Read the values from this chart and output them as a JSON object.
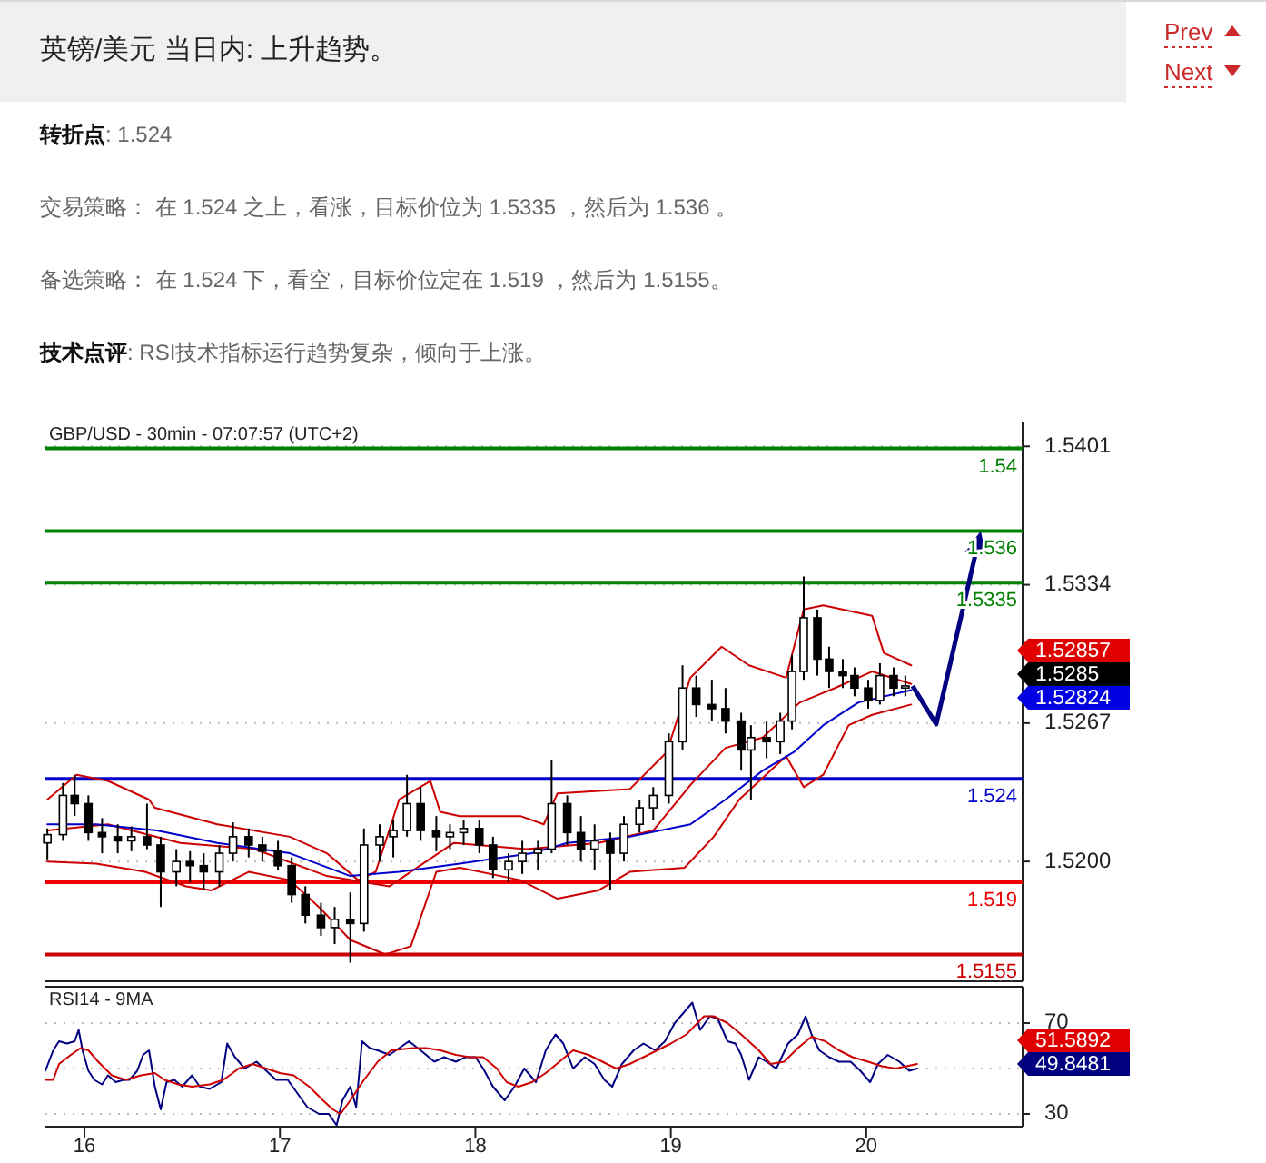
{
  "chart_data": [
    {
      "type": "candlestick",
      "title": "英镑/美元 当日内: 上升趋势。",
      "subtitle": "GBP/USD - 30min - 07:07:57 (UTC+2)",
      "annotations": [
        "Prev",
        "Next",
        "转折点: 1.524",
        "交易策略： 在 1.524 之上，看涨，目标价位为 1.5335 ，然后为 1.536 。",
        "备选策略： 在 1.524 下，看空，目标价位定在 1.519 ，然后为 1.5155。",
        "技术点评: RSI技术指标运行趋势复杂，倾向于上涨。",
        "1.52857",
        "1.5285",
        "1.52824"
      ],
      "x": [
        15.81,
        15.89,
        15.95,
        16.02,
        16.09,
        16.17,
        16.24,
        16.32,
        16.39,
        16.47,
        16.54,
        16.61,
        16.69,
        16.76,
        16.84,
        16.91,
        16.99,
        17.06,
        17.13,
        17.21,
        17.28,
        17.36,
        17.43,
        17.51,
        17.58,
        17.65,
        17.72,
        17.8,
        17.87,
        17.94,
        18.02,
        18.09,
        18.17,
        18.24,
        18.32,
        18.39,
        18.47,
        18.54,
        18.61,
        18.69,
        18.76,
        18.84,
        18.91,
        18.99,
        19.06,
        19.13,
        19.21,
        19.28,
        19.36,
        19.41,
        19.49,
        19.56,
        19.62,
        19.68,
        19.75,
        19.81,
        19.88,
        19.94,
        20.01,
        20.07,
        20.14,
        20.2
      ],
      "ohlc": [
        [
          1.5209,
          1.5216,
          1.5201,
          1.5213
        ],
        [
          1.5213,
          1.5238,
          1.521,
          1.5232
        ],
        [
          1.5232,
          1.5242,
          1.5222,
          1.5228
        ],
        [
          1.5228,
          1.5232,
          1.521,
          1.5214
        ],
        [
          1.5214,
          1.5221,
          1.5204,
          1.5212
        ],
        [
          1.5212,
          1.5218,
          1.5204,
          1.521
        ],
        [
          1.521,
          1.5217,
          1.5205,
          1.5212
        ],
        [
          1.5212,
          1.5228,
          1.5206,
          1.5208
        ],
        [
          1.5208,
          1.5212,
          1.5178,
          1.5195
        ],
        [
          1.5195,
          1.5206,
          1.5188,
          1.52
        ],
        [
          1.52,
          1.5205,
          1.519,
          1.5198
        ],
        [
          1.5198,
          1.5204,
          1.5186,
          1.5195
        ],
        [
          1.5195,
          1.5208,
          1.5188,
          1.5204
        ],
        [
          1.5204,
          1.5219,
          1.52,
          1.5212
        ],
        [
          1.5212,
          1.5216,
          1.5202,
          1.5208
        ],
        [
          1.5208,
          1.5212,
          1.52,
          1.5205
        ],
        [
          1.5205,
          1.521,
          1.5196,
          1.5198
        ],
        [
          1.5198,
          1.5202,
          1.518,
          1.5184
        ],
        [
          1.5184,
          1.5188,
          1.517,
          1.5174
        ],
        [
          1.5174,
          1.518,
          1.5164,
          1.5168
        ],
        [
          1.5168,
          1.5178,
          1.516,
          1.5172
        ],
        [
          1.5172,
          1.5185,
          1.5151,
          1.517
        ],
        [
          1.517,
          1.5216,
          1.5166,
          1.5208
        ],
        [
          1.5208,
          1.5218,
          1.52,
          1.5212
        ],
        [
          1.5212,
          1.522,
          1.5202,
          1.5215
        ],
        [
          1.5215,
          1.5242,
          1.5212,
          1.5228
        ],
        [
          1.5228,
          1.5236,
          1.521,
          1.5215
        ],
        [
          1.5215,
          1.5222,
          1.5205,
          1.5212
        ],
        [
          1.5212,
          1.5218,
          1.5206,
          1.5214
        ],
        [
          1.5214,
          1.522,
          1.5208,
          1.5216
        ],
        [
          1.5216,
          1.522,
          1.5204,
          1.5208
        ],
        [
          1.5208,
          1.5212,
          1.5192,
          1.5196
        ],
        [
          1.5196,
          1.5204,
          1.519,
          1.52
        ],
        [
          1.52,
          1.521,
          1.5194,
          1.5204
        ],
        [
          1.5204,
          1.521,
          1.5196,
          1.5206
        ],
        [
          1.5206,
          1.5249,
          1.5204,
          1.5228
        ],
        [
          1.5228,
          1.5232,
          1.5208,
          1.5214
        ],
        [
          1.5214,
          1.5222,
          1.52,
          1.5206
        ],
        [
          1.5206,
          1.5218,
          1.5196,
          1.521
        ],
        [
          1.521,
          1.5214,
          1.5186,
          1.5204
        ],
        [
          1.5204,
          1.5222,
          1.52,
          1.5218
        ],
        [
          1.5218,
          1.523,
          1.5214,
          1.5226
        ],
        [
          1.5226,
          1.5236,
          1.522,
          1.5232
        ],
        [
          1.5232,
          1.5262,
          1.5228,
          1.5258
        ],
        [
          1.5258,
          1.5295,
          1.5254,
          1.5284
        ],
        [
          1.5284,
          1.529,
          1.527,
          1.5276
        ],
        [
          1.5276,
          1.5288,
          1.5268,
          1.5274
        ],
        [
          1.5274,
          1.5284,
          1.5262,
          1.5268
        ],
        [
          1.5268,
          1.5272,
          1.5244,
          1.5254
        ],
        [
          1.5254,
          1.5266,
          1.523,
          1.526
        ],
        [
          1.526,
          1.5268,
          1.525,
          1.5258
        ],
        [
          1.5258,
          1.5272,
          1.5252,
          1.5268
        ],
        [
          1.5268,
          1.53,
          1.5264,
          1.5292
        ],
        [
          1.5292,
          1.5338,
          1.5288,
          1.5318
        ],
        [
          1.5318,
          1.5322,
          1.529,
          1.5298
        ],
        [
          1.5298,
          1.5304,
          1.5284,
          1.5292
        ],
        [
          1.5292,
          1.5298,
          1.5284,
          1.529
        ],
        [
          1.529,
          1.5294,
          1.528,
          1.5284
        ],
        [
          1.5284,
          1.5288,
          1.5274,
          1.5278
        ],
        [
          1.5278,
          1.5296,
          1.5276,
          1.529
        ],
        [
          1.529,
          1.5294,
          1.528,
          1.5284
        ],
        [
          1.5284,
          1.529,
          1.528,
          1.5285
        ]
      ],
      "series": [
        {
          "type": "line",
          "color": "#cc0000",
          "x": [
            15.81,
            15.96,
            16.12,
            16.33,
            16.36,
            16.68,
            17.05,
            17.24,
            17.4,
            17.49,
            17.61,
            17.77,
            17.82,
            17.92,
            18.23,
            18.35,
            18.42,
            18.79,
            18.98,
            19.1,
            19.26,
            19.4,
            19.59,
            19.68,
            19.78,
            20.03,
            20.09,
            20.23
          ],
          "values": [
            1.523,
            1.5242,
            1.5239,
            1.523,
            1.5226,
            1.5218,
            1.5212,
            1.5204,
            1.5191,
            1.5195,
            1.523,
            1.5239,
            1.5224,
            1.5222,
            1.5222,
            1.5218,
            1.5233,
            1.5235,
            1.5253,
            1.5289,
            1.5304,
            1.5295,
            1.5289,
            1.5322,
            1.5324,
            1.5319,
            1.5301,
            1.5295
          ]
        },
        {
          "type": "line",
          "color": "#cc0000",
          "x": [
            15.81,
            16.06,
            16.31,
            16.52,
            16.65,
            16.84,
            17.05,
            17.21,
            17.36,
            17.54,
            17.67,
            17.8,
            17.92,
            18.23,
            18.42,
            18.63,
            18.79,
            19.07,
            19.22,
            19.35,
            19.59,
            19.68,
            19.78,
            19.91,
            20.03,
            20.23
          ],
          "values": [
            1.52,
            1.5199,
            1.5195,
            1.5188,
            1.5186,
            1.5195,
            1.5191,
            1.5177,
            1.5162,
            1.5155,
            1.5159,
            1.5195,
            1.5197,
            1.5191,
            1.5182,
            1.5186,
            1.5195,
            1.5197,
            1.5212,
            1.523,
            1.5251,
            1.5236,
            1.5242,
            1.5266,
            1.5271,
            1.5276
          ]
        },
        {
          "type": "line",
          "color": "#cc0000",
          "x": [
            15.81,
            16.12,
            16.49,
            16.87,
            17.24,
            17.56,
            17.89,
            18.26,
            18.63,
            18.91,
            19.1,
            19.28,
            19.47,
            19.66,
            19.84,
            20.03,
            20.23
          ],
          "values": [
            1.5215,
            1.5218,
            1.5209,
            1.5206,
            1.5193,
            1.5188,
            1.5209,
            1.5206,
            1.5209,
            1.5215,
            1.5237,
            1.5255,
            1.526,
            1.5277,
            1.5284,
            1.5292,
            1.5286
          ]
        },
        {
          "type": "line",
          "color": "#0000cc",
          "x": [
            15.81,
            16.06,
            16.37,
            16.68,
            17.05,
            17.36,
            17.61,
            17.92,
            18.29,
            18.47,
            18.79,
            19.1,
            19.28,
            19.47,
            19.63,
            19.78,
            19.96,
            20.23
          ],
          "values": [
            1.5218,
            1.5218,
            1.5215,
            1.5209,
            1.5204,
            1.5193,
            1.5195,
            1.5199,
            1.5204,
            1.5209,
            1.5212,
            1.5218,
            1.523,
            1.5244,
            1.5253,
            1.5266,
            1.5277,
            1.5283
          ]
        }
      ],
      "ref_lines": [
        {
          "axis": "y",
          "value": 1.54,
          "label": "1.54",
          "color": "#008000"
        },
        {
          "axis": "y",
          "value": 1.536,
          "label": "1.536",
          "color": "#008000"
        },
        {
          "axis": "y",
          "value": 1.5335,
          "label": "1.5335",
          "color": "#008000"
        },
        {
          "axis": "y",
          "value": 1.524,
          "label": "1.524",
          "color": "#0000cc"
        },
        {
          "axis": "y",
          "value": 1.519,
          "label": "1.519",
          "color": "#ee0000"
        },
        {
          "axis": "y",
          "value": 1.5155,
          "label": "1.5155",
          "color": "#cc0000"
        }
      ],
      "xlim": [
        15.8,
        20.8
      ],
      "ylim": [
        1.5142,
        1.5413
      ],
      "yticks": [
        1.5401,
        1.5334,
        1.5267,
        {
          "value": 1.52,
          "label": "1.5200"
        }
      ],
      "grid": "y",
      "tick_labels": "y"
    },
    {
      "type": "line",
      "title": "RSI14 - 9MA",
      "annotations": [
        "51.5892",
        "49.8481"
      ],
      "series": [
        {
          "color": "#000080",
          "x": [
            15.8,
            15.84,
            15.87,
            15.91,
            15.95,
            15.97,
            15.99,
            16.02,
            16.05,
            16.09,
            16.12,
            16.16,
            16.2,
            16.23,
            16.27,
            16.3,
            16.33,
            16.36,
            16.39,
            16.42,
            16.46,
            16.5,
            16.55,
            16.59,
            16.64,
            16.7,
            16.73,
            16.77,
            16.82,
            16.88,
            16.93,
            16.98,
            17.04,
            17.09,
            17.14,
            17.2,
            17.25,
            17.29,
            17.32,
            17.36,
            17.39,
            17.42,
            17.46,
            17.5,
            17.56,
            17.61,
            17.66,
            17.72,
            17.79,
            17.84,
            17.9,
            17.95,
            18.0,
            18.04,
            18.09,
            18.15,
            18.2,
            18.25,
            18.31,
            18.36,
            18.41,
            18.45,
            18.5,
            18.56,
            18.61,
            18.66,
            18.7,
            18.75,
            18.81,
            18.86,
            18.92,
            18.97,
            19.02,
            19.08,
            19.11,
            19.15,
            19.2,
            19.24,
            19.29,
            19.33,
            19.36,
            19.4,
            19.45,
            19.49,
            19.54,
            19.6,
            19.65,
            19.69,
            19.72,
            19.76,
            19.81,
            19.86,
            19.92,
            19.97,
            20.02,
            20.06,
            20.11,
            20.17,
            20.22,
            20.26
          ],
          "values": [
            49,
            58,
            62,
            61,
            62,
            67,
            58,
            49,
            45,
            43,
            47,
            44,
            45,
            45,
            49,
            56,
            58,
            42,
            32,
            44,
            45,
            42,
            47,
            42,
            41,
            44,
            61,
            55,
            50,
            53,
            49,
            45,
            45,
            39,
            33,
            30,
            30,
            25,
            36,
            42,
            33,
            62,
            59,
            58,
            56,
            59,
            62,
            58,
            53,
            55,
            53,
            55,
            55,
            50,
            42,
            36,
            42,
            50,
            44,
            58,
            65,
            61,
            50,
            55,
            52,
            45,
            42,
            52,
            58,
            61,
            58,
            62,
            70,
            76,
            79,
            67,
            73,
            72,
            62,
            61,
            56,
            45,
            55,
            53,
            50,
            61,
            65,
            73,
            65,
            58,
            55,
            53,
            53,
            49,
            44,
            52,
            56,
            53,
            49,
            50
          ]
        },
        {
          "color": "#cc0000",
          "x": [
            15.8,
            15.84,
            15.87,
            15.93,
            15.98,
            16.02,
            16.07,
            16.14,
            16.21,
            16.29,
            16.36,
            16.41,
            16.48,
            16.55,
            16.64,
            16.71,
            16.79,
            16.86,
            16.93,
            17.0,
            17.07,
            17.15,
            17.22,
            17.27,
            17.31,
            17.36,
            17.43,
            17.5,
            17.57,
            17.68,
            17.75,
            17.82,
            17.9,
            17.97,
            18.04,
            18.11,
            18.16,
            18.22,
            18.29,
            18.36,
            18.43,
            18.5,
            18.58,
            18.65,
            18.72,
            18.79,
            18.86,
            18.93,
            19.0,
            19.08,
            19.17,
            19.22,
            19.29,
            19.36,
            19.45,
            19.51,
            19.58,
            19.65,
            19.72,
            19.79,
            19.86,
            19.93,
            20.01,
            20.08,
            20.15,
            20.26
          ],
          "values": [
            45,
            45,
            52,
            56,
            59,
            58,
            53,
            47,
            45,
            47,
            48,
            45,
            43,
            42,
            43,
            45,
            50,
            52,
            50,
            48,
            47,
            42,
            36,
            32,
            30,
            36,
            45,
            53,
            58,
            59,
            59,
            58,
            56,
            55,
            55,
            50,
            44,
            42,
            44,
            48,
            53,
            58,
            56,
            53,
            50,
            52,
            55,
            58,
            61,
            65,
            73,
            73,
            70,
            65,
            58,
            52,
            53,
            59,
            64,
            62,
            58,
            55,
            53,
            51,
            50,
            52
          ]
        }
      ],
      "xlim": [
        15.8,
        20.8
      ],
      "ylim": [
        24.4,
        86
      ],
      "xticks": [
        16,
        17,
        18,
        19,
        20
      ],
      "yticks": [
        30,
        {
          "value": 50,
          "label": null
        },
        70
      ],
      "grid": "y"
    }
  ]
}
